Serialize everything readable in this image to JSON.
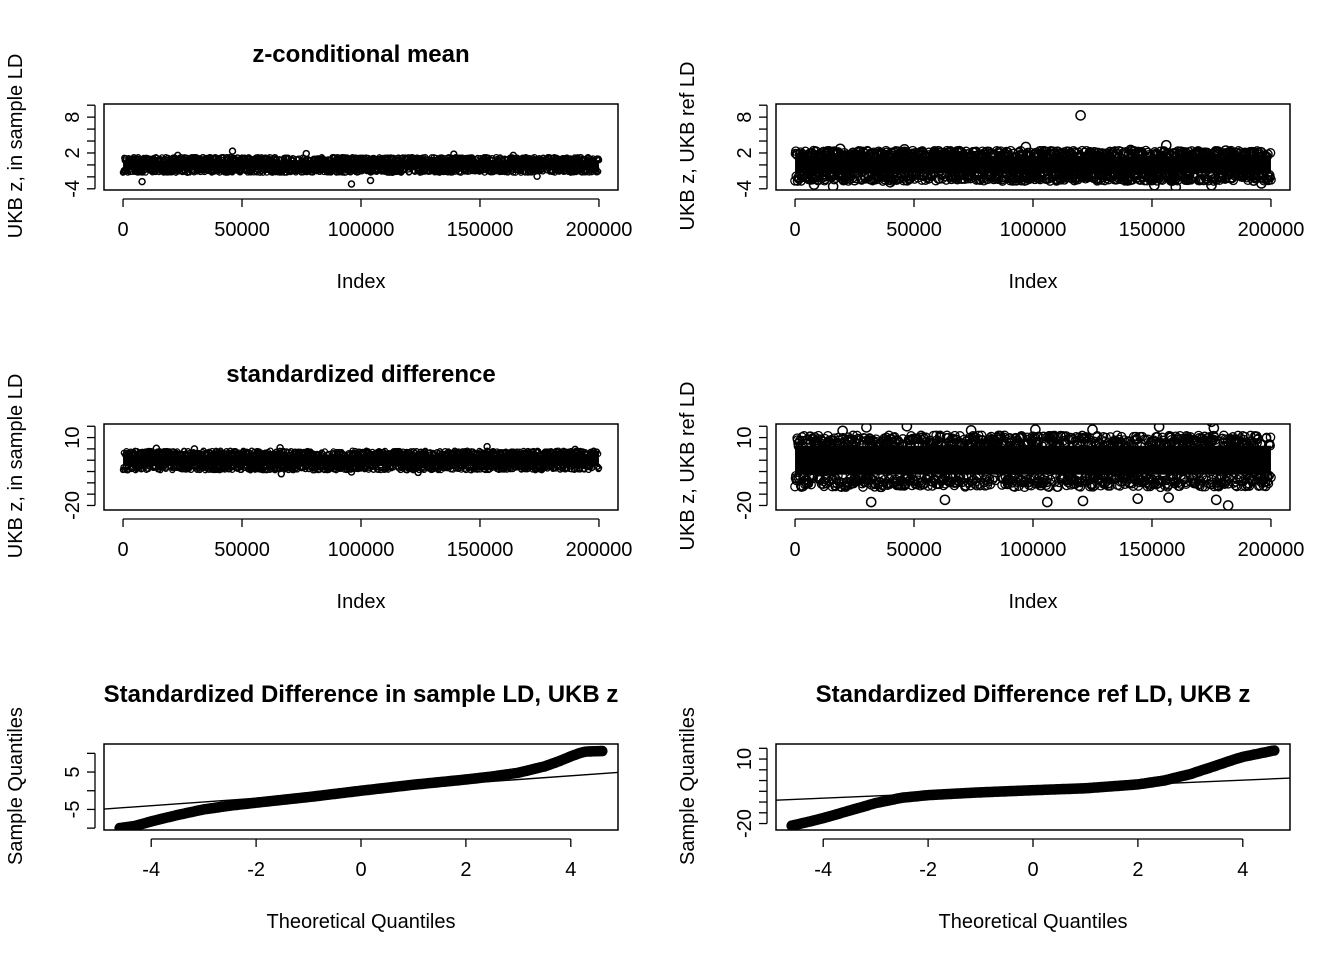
{
  "chart_data": [
    {
      "type": "scatter",
      "title": "z-conditional mean",
      "xlabel": "Index",
      "ylabel": "UKB z, in sample LD",
      "xlim": [
        -8000,
        208000
      ],
      "ylim": [
        -4.2,
        10.2
      ],
      "xticks": [
        0,
        50000,
        100000,
        150000,
        200000
      ],
      "yticks_all": [
        -4,
        -2,
        0,
        2,
        4,
        6,
        8,
        10
      ],
      "yticks_labeled": [
        -4,
        2,
        8
      ],
      "band": {
        "n": 200000,
        "center": 0,
        "core_sd": 0.5,
        "hi": 1.3,
        "lo": -1.3
      },
      "outliers": [
        {
          "x": 46000,
          "y": 2.3
        },
        {
          "x": 96000,
          "y": -3.2
        },
        {
          "x": 8000,
          "y": -2.8
        },
        {
          "x": 104000,
          "y": -2.6
        },
        {
          "x": 77000,
          "y": 1.9
        },
        {
          "x": 139000,
          "y": 1.8
        },
        {
          "x": 164000,
          "y": 1.6
        },
        {
          "x": 23000,
          "y": 1.6
        },
        {
          "x": 174000,
          "y": -1.9
        }
      ]
    },
    {
      "type": "scatter",
      "title": "",
      "xlabel": "Index",
      "ylabel": "UKB z, UKB ref LD",
      "xlim": [
        -8000,
        208000
      ],
      "ylim": [
        -4.2,
        10.2
      ],
      "xticks": [
        0,
        50000,
        100000,
        150000,
        200000
      ],
      "yticks_all": [
        -4,
        -2,
        0,
        2,
        4,
        6,
        8,
        10
      ],
      "yticks_labeled": [
        -4,
        2,
        8
      ],
      "band": {
        "n": 200000,
        "center": 0,
        "core_sd": 0.9,
        "hi": 2.4,
        "lo": -2.7
      },
      "outliers": [
        {
          "x": 120000,
          "y": 8.3
        },
        {
          "x": 97000,
          "y": 3.0
        },
        {
          "x": 156000,
          "y": 3.3
        },
        {
          "x": 16000,
          "y": -3.6
        },
        {
          "x": 151000,
          "y": -3.4
        },
        {
          "x": 175000,
          "y": -3.4
        },
        {
          "x": 196000,
          "y": -3.1
        },
        {
          "x": 8000,
          "y": -3.3
        },
        {
          "x": 19000,
          "y": 2.7
        },
        {
          "x": 46000,
          "y": 2.6
        },
        {
          "x": 69000,
          "y": 2.3
        },
        {
          "x": 141000,
          "y": 2.5
        },
        {
          "x": 181000,
          "y": 2.4
        },
        {
          "x": 160000,
          "y": -3.7
        },
        {
          "x": 40000,
          "y": -2.9
        }
      ]
    },
    {
      "type": "scatter",
      "title": "standardized difference",
      "xlabel": "Index",
      "ylabel": "UKB z, in sample LD",
      "xlim": [
        -8000,
        208000
      ],
      "ylim": [
        -22,
        16
      ],
      "xticks": [
        0,
        50000,
        100000,
        150000,
        200000
      ],
      "yticks_all": [
        -20,
        -15,
        -10,
        -5,
        0,
        5,
        10,
        15
      ],
      "yticks_labeled": [
        -20,
        10
      ],
      "band": {
        "n": 200000,
        "center": 0,
        "core_sd": 1.6,
        "hi": 4.2,
        "lo": -4.4
      },
      "outliers": [
        {
          "x": 153000,
          "y": 6.0
        },
        {
          "x": 66000,
          "y": 5.5
        },
        {
          "x": 66500,
          "y": -6.0
        },
        {
          "x": 14000,
          "y": 5.3
        },
        {
          "x": 96000,
          "y": -5.2
        },
        {
          "x": 30000,
          "y": 5.0
        },
        {
          "x": 124000,
          "y": -5.4
        },
        {
          "x": 190000,
          "y": 4.8
        }
      ]
    },
    {
      "type": "scatter",
      "title": "",
      "xlabel": "Index",
      "ylabel": "UKB z, UKB ref LD",
      "xlim": [
        -8000,
        208000
      ],
      "ylim": [
        -22,
        16
      ],
      "xticks": [
        0,
        50000,
        100000,
        150000,
        200000
      ],
      "yticks_all": [
        -20,
        -15,
        -10,
        -5,
        0,
        5,
        10,
        15
      ],
      "yticks_labeled": [
        -20,
        10
      ],
      "band": {
        "n": 200000,
        "center": 0,
        "core_sd": 4.0,
        "hi": 11.0,
        "lo": -12.0
      },
      "outliers": [
        {
          "x": 175000,
          "y": 17.0
        },
        {
          "x": 47000,
          "y": 15.0
        },
        {
          "x": 30000,
          "y": 14.5
        },
        {
          "x": 153000,
          "y": 14.8
        },
        {
          "x": 176000,
          "y": 14.2
        },
        {
          "x": 182000,
          "y": -20.0
        },
        {
          "x": 32000,
          "y": -18.5
        },
        {
          "x": 106000,
          "y": -18.5
        },
        {
          "x": 121000,
          "y": -18.0
        },
        {
          "x": 63000,
          "y": -17.5
        },
        {
          "x": 144000,
          "y": -17.0
        },
        {
          "x": 177000,
          "y": -17.5
        },
        {
          "x": 101000,
          "y": 13.5
        },
        {
          "x": 125000,
          "y": 13.5
        },
        {
          "x": 74000,
          "y": 13.2
        },
        {
          "x": 20000,
          "y": 13.0
        },
        {
          "x": 157000,
          "y": -16.5
        }
      ]
    },
    {
      "type": "qq",
      "title": "Standardized Difference in sample LD, UKB z",
      "xlabel": "Theoretical Quantiles",
      "ylabel": "Sample Quantiles",
      "xlim": [
        -4.9,
        4.9
      ],
      "ylim": [
        -10.5,
        12.5
      ],
      "xticks": [
        -4,
        -2,
        0,
        2,
        4
      ],
      "yticks_all": [
        -10,
        -5,
        0,
        5,
        10
      ],
      "yticks_labeled": [
        -5,
        5
      ],
      "curve": [
        [
          -4.6,
          -10.0
        ],
        [
          -4.3,
          -9.4
        ],
        [
          -4.0,
          -8.2
        ],
        [
          -3.5,
          -6.5
        ],
        [
          -3.0,
          -5.0
        ],
        [
          -2.5,
          -4.0
        ],
        [
          -2.0,
          -3.2
        ],
        [
          -1.0,
          -1.7
        ],
        [
          0.0,
          0.0
        ],
        [
          1.0,
          1.6
        ],
        [
          2.0,
          3.0
        ],
        [
          2.5,
          3.8
        ],
        [
          3.0,
          4.8
        ],
        [
          3.5,
          6.5
        ],
        [
          3.8,
          8.0
        ],
        [
          4.0,
          9.2
        ],
        [
          4.2,
          10.2
        ],
        [
          4.3,
          10.5
        ],
        [
          4.6,
          10.6
        ]
      ],
      "qqline": {
        "intercept": 0.0,
        "slope": 1.0
      }
    },
    {
      "type": "qq",
      "title": "Standardized Difference ref LD, UKB z",
      "xlabel": "Theoretical Quantiles",
      "ylabel": "Sample Quantiles",
      "xlim": [
        -4.9,
        4.9
      ],
      "ylim": [
        -23,
        17
      ],
      "xticks": [
        -4,
        -2,
        0,
        2,
        4
      ],
      "yticks_all": [
        -20,
        -15,
        -10,
        -5,
        0,
        5,
        10,
        15
      ],
      "yticks_labeled": [
        -20,
        10
      ],
      "curve": [
        [
          -4.6,
          -21.0
        ],
        [
          -4.3,
          -19.3
        ],
        [
          -4.0,
          -17.5
        ],
        [
          -3.5,
          -14.0
        ],
        [
          -3.0,
          -10.5
        ],
        [
          -2.5,
          -8.0
        ],
        [
          -2.0,
          -6.8
        ],
        [
          -1.0,
          -5.5
        ],
        [
          0.0,
          -4.5
        ],
        [
          1.0,
          -3.6
        ],
        [
          2.0,
          -1.8
        ],
        [
          2.5,
          0.0
        ],
        [
          3.0,
          3.0
        ],
        [
          3.5,
          7.0
        ],
        [
          3.8,
          9.5
        ],
        [
          4.0,
          11.0
        ],
        [
          4.2,
          12.0
        ],
        [
          4.3,
          12.5
        ],
        [
          4.6,
          14.0
        ]
      ],
      "qqline": {
        "intercept": -4.0,
        "slope": 1.05
      }
    }
  ]
}
